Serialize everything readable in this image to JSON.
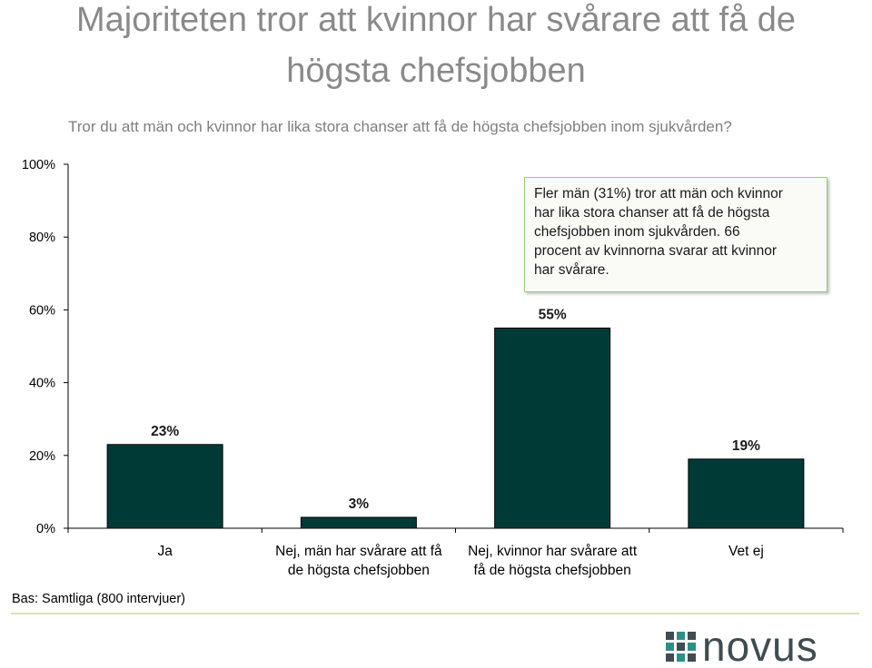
{
  "title": {
    "line1": "Majoriteten tror att kvinnor har svårare att få de",
    "line2": "högsta chefsjobben"
  },
  "question": "Tror du att män och kvinnor har lika stora chanser att få de högsta chefsjobben inom sjukvården?",
  "annotation": {
    "line1": "Fler män (31%) tror att män och kvinnor",
    "line2": "har lika stora chanser att få de högsta",
    "line3": "chefsjobben inom sjukvården. 66",
    "line4": "procent av kvinnorna svarar att kvinnor",
    "line5": "har svårare."
  },
  "base_note": "Bas: Samtliga (800 intervjuer)",
  "logo_text": "novus",
  "colors": {
    "bar": "#003a37",
    "bar_edge": "#000000",
    "title": "#8a8a8a",
    "question": "#7f7f7f",
    "annotation_border": "#9bc97a",
    "footer_line": "#d9e2b8",
    "logo_dark": "#404c50",
    "logo_teal": "#2e8f87"
  },
  "chart_data": {
    "type": "bar",
    "categories": [
      [
        "Ja"
      ],
      [
        "Nej, män har svårare att få",
        "de högsta chefsjobben"
      ],
      [
        "Nej, kvinnor har svårare att",
        "få de högsta chefsjobben"
      ],
      [
        "Vet ej"
      ]
    ],
    "values": [
      23,
      3,
      55,
      19
    ],
    "data_labels": [
      "23%",
      "3%",
      "55%",
      "19%"
    ],
    "ylim": [
      0,
      100
    ],
    "yticks": [
      0,
      20,
      40,
      60,
      80,
      100
    ],
    "ytick_labels": [
      "0%",
      "20%",
      "40%",
      "60%",
      "80%",
      "100%"
    ],
    "grid": false,
    "legend": "none"
  }
}
